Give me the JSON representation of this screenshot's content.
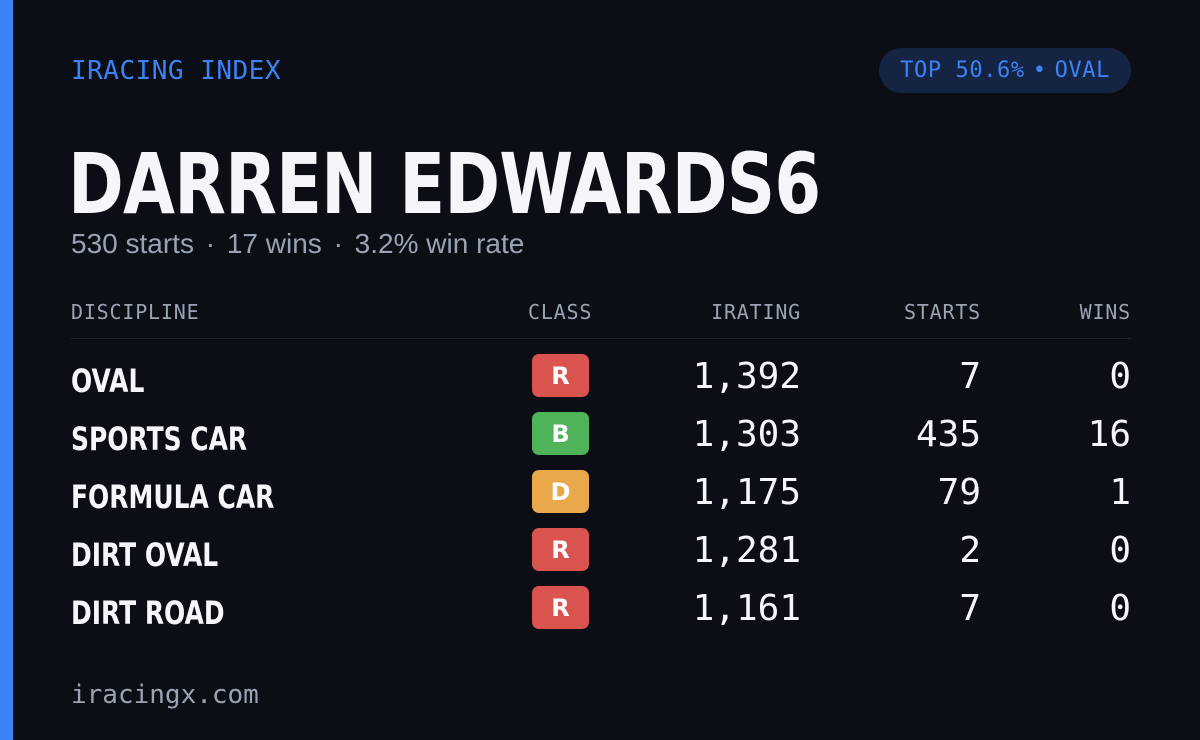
{
  "brand": "IRACING INDEX",
  "badge": {
    "rank": "TOP 50.6%",
    "separator": "•",
    "discipline": "OVAL"
  },
  "driver": {
    "name": "DARREN EDWARDS6",
    "starts": "530 starts",
    "wins": "17 wins",
    "win_rate": "3.2% win rate",
    "separator": "·"
  },
  "table": {
    "headers": {
      "discipline": "DISCIPLINE",
      "class": "CLASS",
      "irating": "IRATING",
      "starts": "STARTS",
      "wins": "WINS"
    },
    "rows": [
      {
        "discipline": "OVAL",
        "class": "R",
        "class_color": "#d9534f",
        "irating": "1,392",
        "starts": "7",
        "wins": "0"
      },
      {
        "discipline": "SPORTS CAR",
        "class": "B",
        "class_color": "#4fb35a",
        "irating": "1,303",
        "starts": "435",
        "wins": "16"
      },
      {
        "discipline": "FORMULA CAR",
        "class": "D",
        "class_color": "#e9a94a",
        "irating": "1,175",
        "starts": "79",
        "wins": "1"
      },
      {
        "discipline": "DIRT OVAL",
        "class": "R",
        "class_color": "#d9534f",
        "irating": "1,281",
        "starts": "2",
        "wins": "0"
      },
      {
        "discipline": "DIRT ROAD",
        "class": "R",
        "class_color": "#d9534f",
        "irating": "1,161",
        "starts": "7",
        "wins": "0"
      }
    ]
  },
  "footer": "iracingx.com",
  "colors": {
    "accent": "#3b82f6",
    "background": "#0b0e15",
    "pill_bg": "#152443",
    "muted": "#9aa3b4",
    "text": "#f4f6fa"
  }
}
